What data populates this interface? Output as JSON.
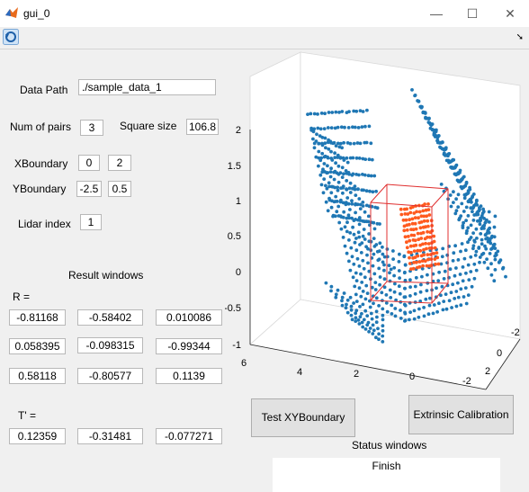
{
  "window": {
    "title": "gui_0",
    "minimize": "—",
    "maximize": "☐",
    "close": "✕"
  },
  "toolbar": {
    "arrow": "➘"
  },
  "form": {
    "data_path_label": "Data Path",
    "data_path_value": "./sample_data_1",
    "num_pairs_label": "Num of pairs",
    "num_pairs_value": "3",
    "square_size_label": "Square size",
    "square_size_value": "106.8",
    "xboundary_label": "XBoundary",
    "xboundary_min": "0",
    "xboundary_max": "2",
    "yboundary_label": "YBoundary",
    "yboundary_min": "-2.5",
    "yboundary_max": "0.5",
    "lidar_index_label": "Lidar index",
    "lidar_index_value": "1"
  },
  "result": {
    "title": "Result windows",
    "r_label": "R =",
    "r_rows": [
      [
        "-0.81168",
        "-0.58402",
        "0.010086"
      ],
      [
        "0.058395",
        "-0.098315",
        "-0.99344"
      ],
      [
        "0.58118",
        "-0.80577",
        "0.1139"
      ]
    ],
    "t_label": "T' =",
    "t_values": [
      "0.12359",
      "-0.31481",
      "-0.077271"
    ]
  },
  "buttons": {
    "test_xy": "Test XYBoundary",
    "extrinsic": "Extrinsic Calibration"
  },
  "status": {
    "title": "Status windows",
    "value": "Finish"
  },
  "plot": {
    "z_ticks": [
      "2",
      "1.5",
      "1",
      "0.5",
      "0",
      "-0.5",
      "-1"
    ],
    "x_ticks": [
      "6",
      "4",
      "2",
      "0",
      "-2"
    ],
    "y_ticks": [
      "-2",
      "0",
      "2"
    ],
    "point_color": "#1f77b4",
    "board_color": "#ff5a1f",
    "box_color": "#e03030"
  }
}
